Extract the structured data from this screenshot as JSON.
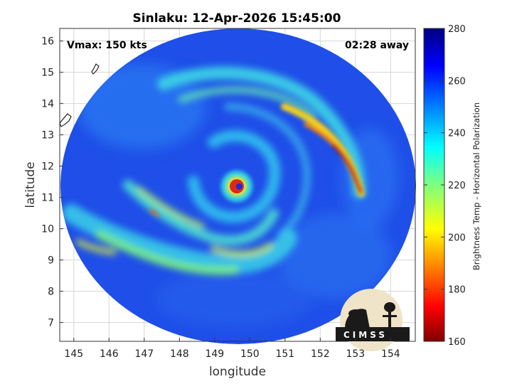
{
  "chart_data": {
    "type": "heatmap",
    "title": "Sinlaku: 12-Apr-2026 15:45:00",
    "xlabel": "longitude",
    "ylabel": "latitude",
    "xlim": [
      144.6,
      154.7
    ],
    "ylim": [
      6.4,
      16.4
    ],
    "x_ticks": [
      "145",
      "146",
      "147",
      "148",
      "149",
      "150",
      "151",
      "152",
      "153",
      "154"
    ],
    "y_ticks": [
      "7",
      "8",
      "9",
      "10",
      "11",
      "12",
      "13",
      "14",
      "15",
      "16"
    ],
    "grid": true,
    "annotations": {
      "vmax": "Vmax: 150 kts",
      "time_away": "02:28 away"
    },
    "colorbar": {
      "label": "Brightness Temp - Horizontal Polarization",
      "range": [
        160,
        280
      ],
      "ticks": [
        "280",
        "260",
        "240",
        "220",
        "200",
        "180",
        "160"
      ],
      "colormap": "jet"
    },
    "storm_center": {
      "lon": 149.7,
      "lat": 11.35
    },
    "swath_center": {
      "lon": 149.6,
      "lat": 11.4
    },
    "logo": "CIMSS"
  }
}
